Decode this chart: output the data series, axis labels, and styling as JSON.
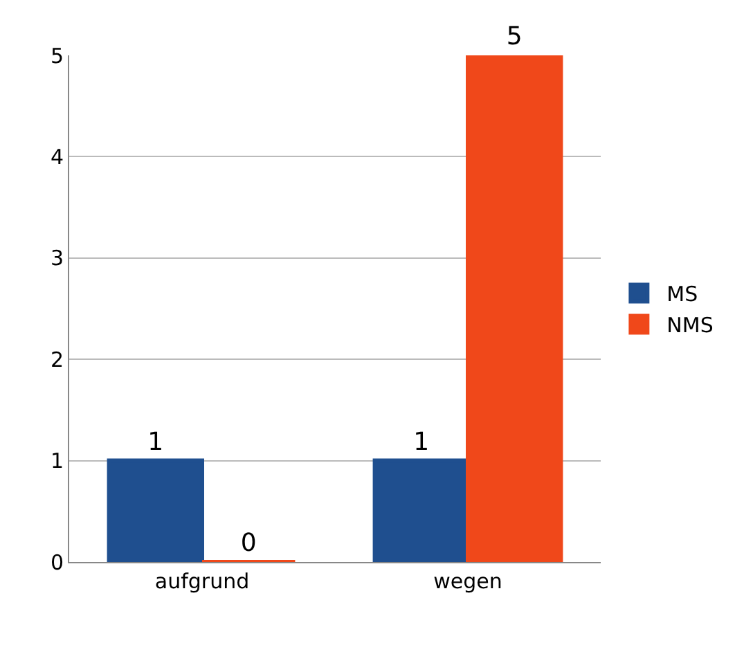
{
  "chart_data": {
    "type": "bar",
    "categories": [
      "aufgrund",
      "wegen"
    ],
    "series": [
      {
        "name": "MS",
        "color": "#1f4f8f",
        "values": [
          1,
          1
        ]
      },
      {
        "name": "NMS",
        "color": "#f0481a",
        "values": [
          0,
          5
        ]
      }
    ],
    "ylim": [
      0,
      5
    ],
    "yticks": [
      0,
      1,
      2,
      3,
      4,
      5
    ],
    "grid": "y",
    "legend": "right",
    "data_labels": true
  }
}
